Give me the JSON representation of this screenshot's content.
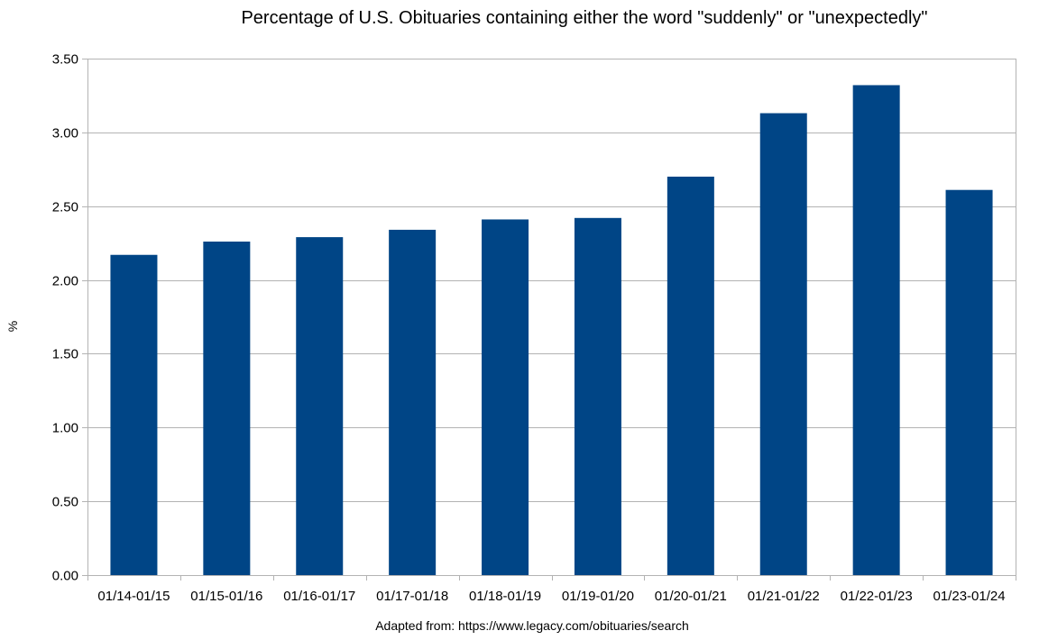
{
  "chart_data": {
    "type": "bar",
    "title": "Percentage of U.S. Obituaries containing either the word \"suddenly\" or \"unexpectedly\"",
    "xlabel": "",
    "ylabel": "%",
    "source_note": "Adapted from: https://www.legacy.com/obituaries/search",
    "categories": [
      "01/14-01/15",
      "01/15-01/16",
      "01/16-01/17",
      "01/17-01/18",
      "01/18-01/19",
      "01/19-01/20",
      "01/20-01/21",
      "01/21-01/22",
      "01/22-01/23",
      "01/23-01/24"
    ],
    "values": [
      2.17,
      2.26,
      2.29,
      2.34,
      2.41,
      2.42,
      2.7,
      3.13,
      3.32,
      2.61
    ],
    "ylim": [
      0,
      3.5
    ],
    "yticks": [
      "0.00",
      "0.50",
      "1.00",
      "1.50",
      "2.00",
      "2.50",
      "3.00",
      "3.50"
    ],
    "grid": true,
    "legend": "none",
    "bar_color": "#004586",
    "grid_color": "#b3b3b3"
  }
}
